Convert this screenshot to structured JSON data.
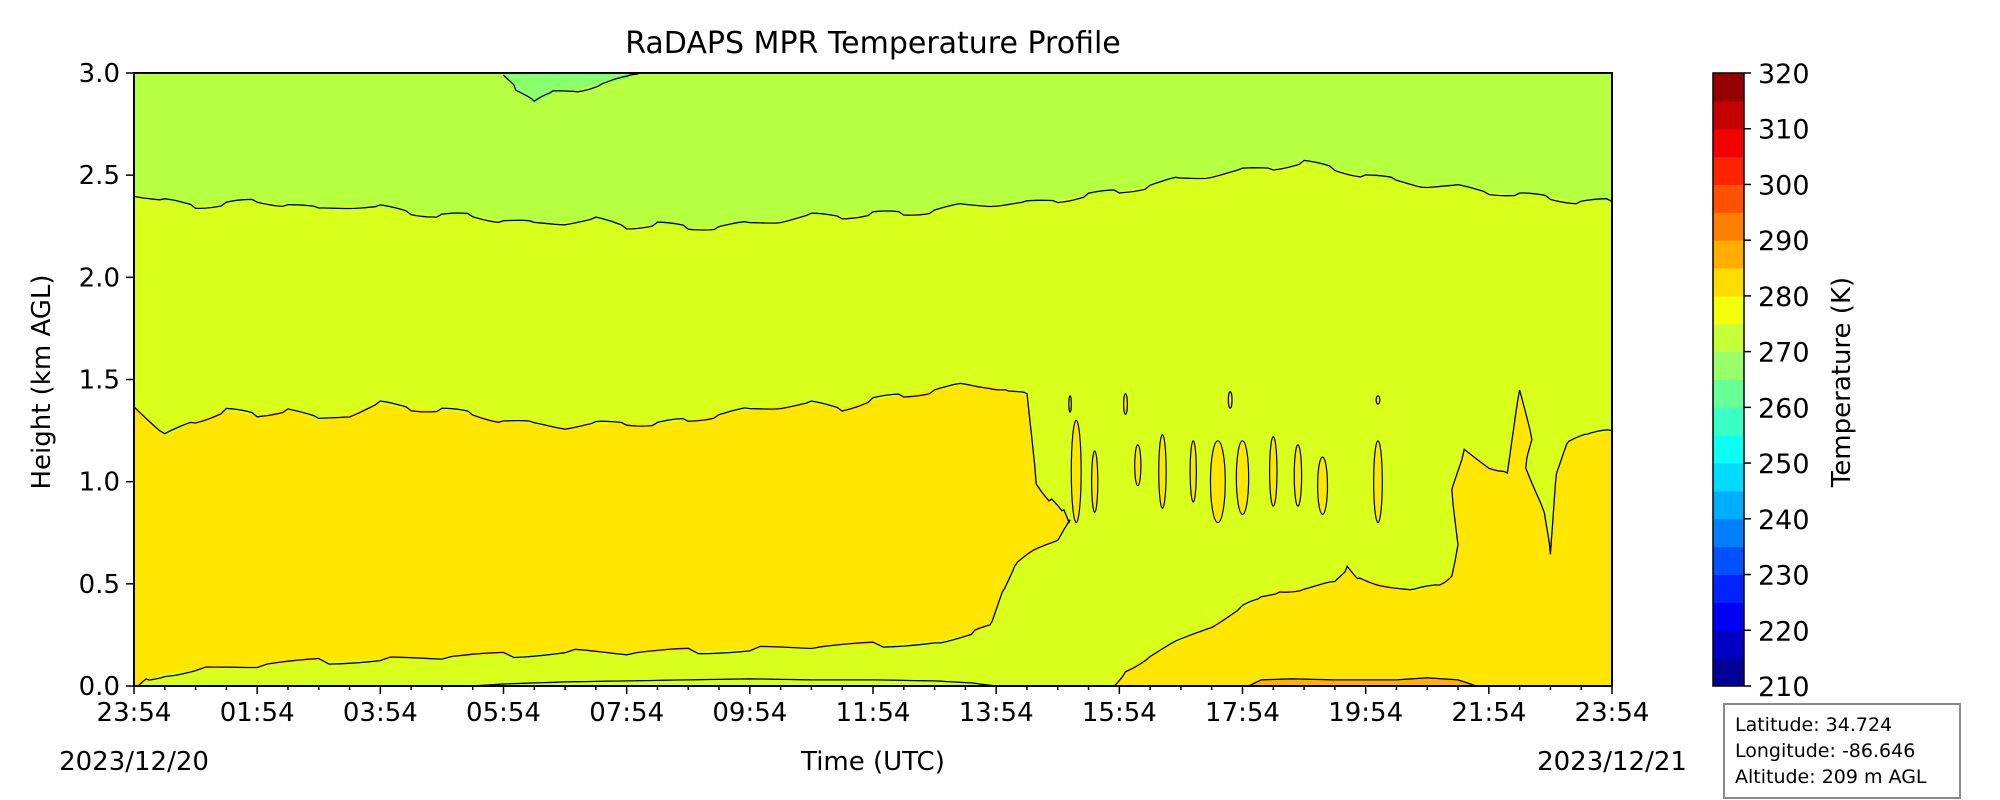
{
  "chart_data": {
    "type": "heatmap",
    "subtype": "filled-contour",
    "title": "RaDAPS MPR Temperature Profile",
    "xlabel": "Time (UTC)",
    "ylabel": "Height (km AGL)",
    "colorbar_label": "Temperature (K)",
    "x_ticks": [
      "23:54",
      "01:54",
      "03:54",
      "05:54",
      "07:54",
      "09:54",
      "11:54",
      "13:54",
      "15:54",
      "17:54",
      "19:54",
      "21:54",
      "23:54"
    ],
    "x_range_hours": [
      0,
      24
    ],
    "start_date": "2023/12/20",
    "end_date": "2023/12/21",
    "ylim": [
      0.0,
      3.0
    ],
    "y_ticks": [
      "0.0",
      "0.5",
      "1.0",
      "1.5",
      "2.0",
      "2.5",
      "3.0"
    ],
    "colorbar_ticks": [
      "210",
      "220",
      "230",
      "240",
      "250",
      "260",
      "270",
      "280",
      "290",
      "300",
      "310",
      "320"
    ],
    "colorbar_range": [
      210,
      320
    ],
    "colorbar_step": 5,
    "colormap": "jet",
    "contour_line_color": "#000000",
    "bands": [
      {
        "temperature_range": [
          285,
          290
        ],
        "color": "#ffb300"
      },
      {
        "temperature_range": [
          280,
          285
        ],
        "color": "#ffe600"
      },
      {
        "temperature_range": [
          275,
          280
        ],
        "color": "#d9ff1d"
      },
      {
        "temperature_range": [
          270,
          275
        ],
        "color": "#b6ff41"
      },
      {
        "temperature_range": [
          265,
          270
        ],
        "color": "#8aff6d"
      }
    ],
    "contours": [
      {
        "id": "c275_upper",
        "level": 275,
        "points": [
          [
            0,
            2.41
          ],
          [
            0.5,
            2.37
          ],
          [
            1,
            2.35
          ],
          [
            1.5,
            2.36
          ],
          [
            2,
            2.37
          ],
          [
            2.5,
            2.36
          ],
          [
            3,
            2.33
          ],
          [
            3.5,
            2.35
          ],
          [
            4,
            2.34
          ],
          [
            4.5,
            2.32
          ],
          [
            5,
            2.3
          ],
          [
            5.5,
            2.3
          ],
          [
            6,
            2.28
          ],
          [
            6.5,
            2.26
          ],
          [
            7,
            2.27
          ],
          [
            7.5,
            2.28
          ],
          [
            8,
            2.25
          ],
          [
            8.5,
            2.26
          ],
          [
            9,
            2.24
          ],
          [
            9.5,
            2.25
          ],
          [
            10,
            2.26
          ],
          [
            10.5,
            2.28
          ],
          [
            11,
            2.3
          ],
          [
            11.5,
            2.3
          ],
          [
            12,
            2.31
          ],
          [
            12.5,
            2.31
          ],
          [
            13,
            2.33
          ],
          [
            13.5,
            2.35
          ],
          [
            14,
            2.36
          ],
          [
            14.5,
            2.36
          ],
          [
            15,
            2.38
          ],
          [
            15.5,
            2.4
          ],
          [
            16,
            2.42
          ],
          [
            16.5,
            2.45
          ],
          [
            17,
            2.48
          ],
          [
            17.5,
            2.5
          ],
          [
            18,
            2.52
          ],
          [
            18.5,
            2.54
          ],
          [
            19,
            2.56
          ],
          [
            19.5,
            2.53
          ],
          [
            20,
            2.5
          ],
          [
            20.5,
            2.47
          ],
          [
            21,
            2.45
          ],
          [
            21.5,
            2.44
          ],
          [
            22,
            2.42
          ],
          [
            22.5,
            2.4
          ],
          [
            23,
            2.39
          ],
          [
            23.5,
            2.37
          ],
          [
            24,
            2.37
          ]
        ]
      },
      {
        "id": "c280_mid",
        "level": 280,
        "points": [
          [
            0,
            1.38
          ],
          [
            0.5,
            1.22
          ],
          [
            1,
            1.3
          ],
          [
            1.5,
            1.35
          ],
          [
            2,
            1.32
          ],
          [
            2.5,
            1.36
          ],
          [
            3,
            1.3
          ],
          [
            3.5,
            1.33
          ],
          [
            4,
            1.38
          ],
          [
            4.5,
            1.36
          ],
          [
            5,
            1.35
          ],
          [
            5.5,
            1.33
          ],
          [
            6,
            1.3
          ],
          [
            6.5,
            1.28
          ],
          [
            7,
            1.27
          ],
          [
            7.5,
            1.28
          ],
          [
            8,
            1.29
          ],
          [
            8.5,
            1.28
          ],
          [
            9,
            1.3
          ],
          [
            9.5,
            1.33
          ],
          [
            10,
            1.35
          ],
          [
            10.5,
            1.37
          ],
          [
            11,
            1.38
          ],
          [
            11.5,
            1.36
          ],
          [
            12,
            1.4
          ],
          [
            12.5,
            1.42
          ],
          [
            13,
            1.45
          ],
          [
            13.5,
            1.47
          ],
          [
            13.9,
            1.47
          ],
          [
            14.2,
            1.45
          ],
          [
            14.5,
            1.42
          ],
          [
            14.65,
            1.0
          ],
          [
            14.9,
            0.9
          ],
          [
            15.1,
            0.85
          ],
          [
            15.2,
            0.8
          ],
          [
            15.0,
            0.72
          ],
          [
            14.6,
            0.65
          ],
          [
            14.3,
            0.6
          ],
          [
            14.1,
            0.45
          ],
          [
            13.9,
            0.3
          ],
          [
            13.6,
            0.25
          ],
          [
            13,
            0.22
          ],
          [
            12,
            0.2
          ],
          [
            11,
            0.19
          ],
          [
            10,
            0.18
          ],
          [
            9,
            0.17
          ],
          [
            8,
            0.16
          ],
          [
            7,
            0.17
          ],
          [
            6,
            0.15
          ],
          [
            5,
            0.14
          ],
          [
            4,
            0.13
          ],
          [
            3,
            0.12
          ],
          [
            2,
            0.1
          ],
          [
            1,
            0.08
          ],
          [
            0.5,
            0.06
          ],
          [
            0.2,
            0.02
          ],
          [
            0.05,
            0
          ]
        ]
      },
      {
        "id": "c285_bottom",
        "level": 285,
        "points": [
          [
            5.5,
            0
          ],
          [
            6,
            0.01
          ],
          [
            7,
            0.02
          ],
          [
            8,
            0.025
          ],
          [
            9,
            0.03
          ],
          [
            10,
            0.035
          ],
          [
            11,
            0.03
          ],
          [
            12,
            0.03
          ],
          [
            13,
            0.025
          ],
          [
            13.6,
            0.015
          ],
          [
            14.0,
            0
          ]
        ]
      },
      {
        "id": "c280_right",
        "level": 280,
        "points": [
          [
            15.9,
            0
          ],
          [
            16.1,
            0.08
          ],
          [
            16.5,
            0.15
          ],
          [
            17,
            0.22
          ],
          [
            17.5,
            0.3
          ],
          [
            18,
            0.38
          ],
          [
            18.3,
            0.43
          ],
          [
            18.6,
            0.47
          ],
          [
            19,
            0.48
          ],
          [
            19.5,
            0.5
          ],
          [
            19.7,
            0.58
          ],
          [
            19.9,
            0.53
          ],
          [
            20.3,
            0.5
          ],
          [
            20.8,
            0.46
          ],
          [
            21.2,
            0.5
          ],
          [
            21.4,
            0.55
          ],
          [
            21.5,
            0.7
          ],
          [
            21.4,
            0.95
          ],
          [
            21.6,
            1.15
          ],
          [
            22,
            1.08
          ],
          [
            22.3,
            1.05
          ],
          [
            22.5,
            1.45
          ],
          [
            22.7,
            1.2
          ],
          [
            22.6,
            1.08
          ],
          [
            22.9,
            0.85
          ],
          [
            23,
            0.65
          ],
          [
            23.1,
            1.05
          ],
          [
            23.3,
            1.2
          ],
          [
            23.6,
            1.22
          ],
          [
            24,
            1.25
          ]
        ]
      },
      {
        "id": "c290_blob",
        "level": 290,
        "points": [
          [
            18.1,
            0
          ],
          [
            18.3,
            0.03
          ],
          [
            18.8,
            0.035
          ],
          [
            19.5,
            0.03
          ],
          [
            20.5,
            0.03
          ],
          [
            21.0,
            0.04
          ],
          [
            21.5,
            0.03
          ],
          [
            21.8,
            0
          ]
        ]
      },
      {
        "id": "c275_blob",
        "level": 275,
        "points": [
          [
            6.0,
            3.0
          ],
          [
            6.2,
            2.92
          ],
          [
            6.5,
            2.85
          ],
          [
            6.8,
            2.9
          ],
          [
            7.2,
            2.92
          ],
          [
            7.6,
            2.95
          ],
          [
            8.0,
            2.97
          ],
          [
            8.2,
            3.0
          ]
        ]
      }
    ],
    "islands": [
      {
        "x": 15.3,
        "y": 1.05,
        "rx": 0.08,
        "ry": 0.25
      },
      {
        "x": 15.6,
        "y": 1.0,
        "rx": 0.05,
        "ry": 0.15
      },
      {
        "x": 16.3,
        "y": 1.08,
        "rx": 0.05,
        "ry": 0.1
      },
      {
        "x": 16.7,
        "y": 1.05,
        "rx": 0.06,
        "ry": 0.18
      },
      {
        "x": 17.2,
        "y": 1.05,
        "rx": 0.05,
        "ry": 0.15
      },
      {
        "x": 17.6,
        "y": 1.0,
        "rx": 0.12,
        "ry": 0.2
      },
      {
        "x": 18.0,
        "y": 1.02,
        "rx": 0.1,
        "ry": 0.18
      },
      {
        "x": 18.5,
        "y": 1.05,
        "rx": 0.06,
        "ry": 0.17
      },
      {
        "x": 18.9,
        "y": 1.03,
        "rx": 0.06,
        "ry": 0.15
      },
      {
        "x": 19.3,
        "y": 0.98,
        "rx": 0.08,
        "ry": 0.14
      },
      {
        "x": 20.2,
        "y": 1.0,
        "rx": 0.07,
        "ry": 0.2
      },
      {
        "x": 16.1,
        "y": 1.38,
        "rx": 0.03,
        "ry": 0.05
      },
      {
        "x": 17.8,
        "y": 1.4,
        "rx": 0.03,
        "ry": 0.04
      },
      {
        "x": 20.2,
        "y": 1.4,
        "rx": 0.03,
        "ry": 0.02
      },
      {
        "x": 15.2,
        "y": 1.38,
        "rx": 0.02,
        "ry": 0.04
      }
    ]
  },
  "info": {
    "latitude": "Latitude: 34.724",
    "longitude": "Longitude: -86.646",
    "altitude": "Altitude: 209 m AGL"
  }
}
